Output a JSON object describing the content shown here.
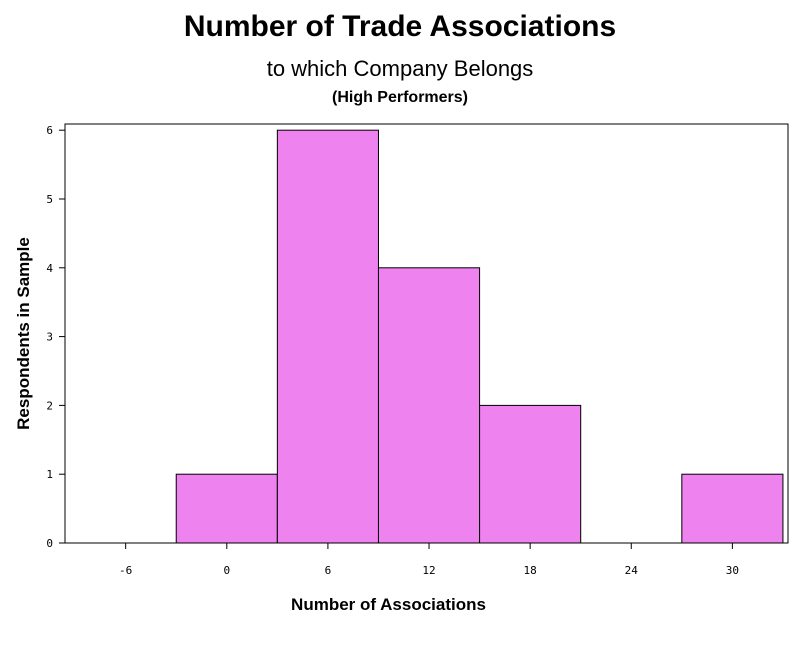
{
  "chart_data": {
    "type": "bar",
    "title": "Number of Trade Associations",
    "subtitle": "to which Company Belongs",
    "subsubtitle": "(High Performers)",
    "xlabel": "Number of Associations",
    "ylabel": "Respondents in Sample",
    "categories": [
      "0",
      "6",
      "12",
      "18",
      "24",
      "30"
    ],
    "values": [
      1,
      6,
      4,
      2,
      0,
      1
    ],
    "bin_width": 6,
    "xticks": [
      "-6",
      "0",
      "6",
      "12",
      "18",
      "24",
      "30"
    ],
    "xtick_values": [
      -6,
      0,
      6,
      12,
      18,
      24,
      30
    ],
    "yticks": [
      "0",
      "1",
      "2",
      "3",
      "4",
      "5",
      "6"
    ],
    "xlim": [
      -9.6,
      33.3
    ],
    "ylim": [
      0,
      6.09
    ],
    "bar_color": "#ee82ee",
    "grid": false
  }
}
